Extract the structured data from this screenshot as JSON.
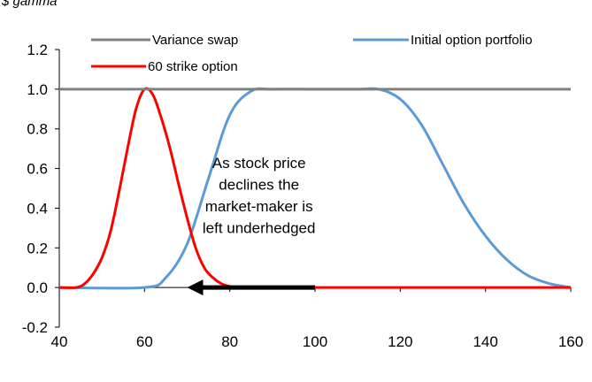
{
  "chart_data": {
    "type": "line",
    "title": "",
    "ylabel": "$ gamma",
    "xlabel": "",
    "xlim": [
      40,
      160
    ],
    "ylim": [
      -0.2,
      1.2
    ],
    "xticks": [
      40,
      60,
      80,
      100,
      120,
      140,
      160
    ],
    "yticks": [
      -0.2,
      0.0,
      0.2,
      0.4,
      0.6,
      0.8,
      1.0,
      1.2
    ],
    "ytick_labels": [
      "-0.2",
      "0.0",
      "0.2",
      "0.4",
      "0.6",
      "0.8",
      "1.0",
      "1.2"
    ],
    "grid": false,
    "legend_placement": "top",
    "series": [
      {
        "name": "Variance swap",
        "color": "#808080",
        "x": [
          40,
          160
        ],
        "y": [
          1.0,
          1.0
        ]
      },
      {
        "name": "Initial option portfolio",
        "color": "#5b9bd5",
        "x": [
          40,
          60,
          65,
          70,
          75,
          80,
          85,
          90,
          100,
          110,
          115,
          120,
          125,
          130,
          135,
          140,
          145,
          150,
          155,
          160
        ],
        "y": [
          0.0,
          0.0,
          0.05,
          0.22,
          0.55,
          0.87,
          0.99,
          1.0,
          1.0,
          1.0,
          1.0,
          0.95,
          0.82,
          0.62,
          0.42,
          0.26,
          0.14,
          0.06,
          0.02,
          0.0
        ]
      },
      {
        "name": "60 strike option",
        "color": "#ff0000",
        "x": [
          40,
          44,
          46,
          48,
          50,
          52,
          54,
          56,
          58,
          60,
          62,
          64,
          66,
          68,
          70,
          72,
          74,
          76,
          78,
          80,
          82,
          160
        ],
        "y": [
          0.0,
          0.0,
          0.02,
          0.07,
          0.15,
          0.28,
          0.48,
          0.7,
          0.9,
          1.0,
          0.97,
          0.85,
          0.7,
          0.52,
          0.35,
          0.2,
          0.1,
          0.05,
          0.02,
          0.005,
          0.0,
          0.0
        ]
      }
    ],
    "annotation": {
      "lines": [
        "As stock price",
        "declines the",
        "market-maker is",
        "left underhedged"
      ],
      "center": [
        80,
        0.4
      ]
    },
    "arrow": {
      "from": [
        100,
        0.0
      ],
      "to": [
        70,
        0.0
      ],
      "color": "#000000"
    }
  }
}
